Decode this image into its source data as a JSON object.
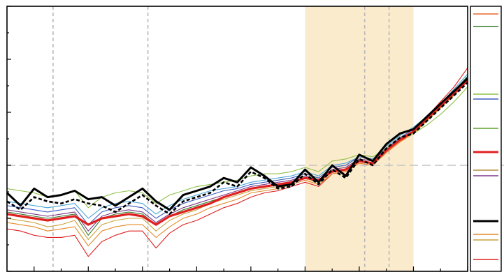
{
  "chart_data": {
    "type": "line",
    "title": "",
    "xlabel": "",
    "ylabel": "",
    "xlim": [
      1850,
      2020
    ],
    "ylim": [
      -1.0,
      1.5
    ],
    "grid": false,
    "reference_line_y": 0,
    "volcanic_event_x": [
      1867,
      1902,
      1982,
      1991
    ],
    "shaded_region": {
      "start": 1960,
      "end": 2000,
      "color": "#fbebcd"
    },
    "legend": {
      "placement": "right",
      "swatch_colors": [
        "#e96a2a",
        "#3a7d2e",
        "#8fbf4a",
        "#3f5cc0",
        "#5ea02f",
        "#e02020",
        "#b48a3c",
        "#7b3a8a",
        "#000000",
        "#e38a2a",
        "#c8a23c",
        "#e02020"
      ]
    },
    "x": [
      1850,
      1855,
      1860,
      1865,
      1870,
      1875,
      1880,
      1885,
      1890,
      1895,
      1900,
      1905,
      1910,
      1915,
      1920,
      1925,
      1930,
      1935,
      1940,
      1945,
      1950,
      1955,
      1960,
      1965,
      1970,
      1975,
      1980,
      1985,
      1990,
      1995,
      2000,
      2005,
      2010,
      2015,
      2020
    ],
    "series": [
      {
        "color": "#000000",
        "style": "thick",
        "values": [
          -0.26,
          -0.38,
          -0.22,
          -0.3,
          -0.28,
          -0.24,
          -0.32,
          -0.3,
          -0.38,
          -0.3,
          -0.22,
          -0.34,
          -0.42,
          -0.28,
          -0.24,
          -0.2,
          -0.12,
          -0.16,
          -0.02,
          -0.1,
          -0.2,
          -0.18,
          -0.04,
          -0.16,
          0.0,
          -0.1,
          0.1,
          0.04,
          0.2,
          0.3,
          0.34,
          0.46,
          0.58,
          0.7,
          0.82
        ]
      },
      {
        "color": "#000000",
        "style": "dashed",
        "values": [
          -0.34,
          -0.42,
          -0.3,
          -0.34,
          -0.36,
          -0.32,
          -0.36,
          -0.38,
          -0.44,
          -0.36,
          -0.28,
          -0.38,
          -0.46,
          -0.34,
          -0.3,
          -0.26,
          -0.16,
          -0.2,
          -0.06,
          -0.12,
          -0.22,
          -0.2,
          -0.08,
          -0.18,
          -0.04,
          -0.12,
          0.06,
          0.0,
          0.16,
          0.26,
          0.3,
          0.42,
          0.54,
          0.66,
          0.78
        ]
      },
      {
        "color": "#e02020",
        "style": "mean",
        "values": [
          -0.46,
          -0.48,
          -0.5,
          -0.52,
          -0.5,
          -0.48,
          -0.56,
          -0.5,
          -0.48,
          -0.46,
          -0.48,
          -0.56,
          -0.48,
          -0.44,
          -0.4,
          -0.36,
          -0.3,
          -0.26,
          -0.22,
          -0.2,
          -0.18,
          -0.16,
          -0.12,
          -0.14,
          -0.06,
          -0.04,
          0.04,
          0.02,
          0.14,
          0.24,
          0.32,
          0.44,
          0.56,
          0.68,
          0.8
        ]
      },
      {
        "color": "#e02020",
        "style": "thin",
        "values": [
          -0.6,
          -0.62,
          -0.66,
          -0.68,
          -0.68,
          -0.66,
          -0.86,
          -0.72,
          -0.66,
          -0.62,
          -0.62,
          -0.78,
          -0.64,
          -0.56,
          -0.52,
          -0.46,
          -0.4,
          -0.36,
          -0.3,
          -0.26,
          -0.24,
          -0.2,
          -0.16,
          -0.2,
          -0.08,
          -0.06,
          0.02,
          0.0,
          0.12,
          0.22,
          0.32,
          0.46,
          0.6,
          0.74,
          0.92
        ]
      },
      {
        "color": "#e38a2a",
        "style": "thin",
        "values": [
          -0.54,
          -0.56,
          -0.58,
          -0.62,
          -0.6,
          -0.58,
          -0.76,
          -0.62,
          -0.58,
          -0.56,
          -0.56,
          -0.68,
          -0.58,
          -0.5,
          -0.46,
          -0.4,
          -0.36,
          -0.32,
          -0.26,
          -0.24,
          -0.22,
          -0.18,
          -0.14,
          -0.18,
          -0.08,
          -0.06,
          0.02,
          0.0,
          0.12,
          0.22,
          0.3,
          0.42,
          0.54,
          0.66,
          0.8
        ]
      },
      {
        "color": "#c8a23c",
        "style": "thin",
        "values": [
          -0.5,
          -0.52,
          -0.54,
          -0.58,
          -0.56,
          -0.52,
          -0.7,
          -0.56,
          -0.52,
          -0.5,
          -0.5,
          -0.62,
          -0.52,
          -0.46,
          -0.42,
          -0.36,
          -0.32,
          -0.28,
          -0.24,
          -0.22,
          -0.2,
          -0.16,
          -0.12,
          -0.16,
          -0.06,
          -0.04,
          0.04,
          0.02,
          0.14,
          0.24,
          0.32,
          0.42,
          0.54,
          0.66,
          0.8
        ]
      },
      {
        "color": "#7b3a8a",
        "style": "thin",
        "values": [
          -0.42,
          -0.44,
          -0.46,
          -0.48,
          -0.46,
          -0.44,
          -0.62,
          -0.48,
          -0.44,
          -0.42,
          -0.44,
          -0.54,
          -0.46,
          -0.4,
          -0.36,
          -0.32,
          -0.28,
          -0.24,
          -0.2,
          -0.18,
          -0.16,
          -0.14,
          -0.1,
          -0.14,
          -0.04,
          -0.02,
          0.06,
          0.04,
          0.16,
          0.26,
          0.34,
          0.46,
          0.58,
          0.7,
          0.82
        ]
      },
      {
        "color": "#3f5cc0",
        "style": "thin",
        "values": [
          -0.38,
          -0.4,
          -0.42,
          -0.44,
          -0.42,
          -0.4,
          -0.56,
          -0.44,
          -0.4,
          -0.38,
          -0.4,
          -0.5,
          -0.42,
          -0.36,
          -0.32,
          -0.28,
          -0.24,
          -0.22,
          -0.18,
          -0.16,
          -0.14,
          -0.12,
          -0.08,
          -0.12,
          -0.02,
          0.0,
          0.08,
          0.06,
          0.16,
          0.26,
          0.34,
          0.46,
          0.58,
          0.7,
          0.84
        ]
      },
      {
        "color": "#4aa6d8",
        "style": "thin",
        "values": [
          -0.34,
          -0.36,
          -0.38,
          -0.4,
          -0.38,
          -0.36,
          -0.5,
          -0.4,
          -0.36,
          -0.34,
          -0.36,
          -0.46,
          -0.38,
          -0.32,
          -0.28,
          -0.24,
          -0.22,
          -0.2,
          -0.16,
          -0.14,
          -0.12,
          -0.1,
          -0.06,
          -0.1,
          0.0,
          0.02,
          0.08,
          0.06,
          0.18,
          0.28,
          0.36,
          0.46,
          0.58,
          0.72,
          0.86
        ]
      },
      {
        "color": "#8fbf4a",
        "style": "thin",
        "values": [
          -0.22,
          -0.24,
          -0.26,
          -0.3,
          -0.28,
          -0.24,
          -0.4,
          -0.3,
          -0.26,
          -0.24,
          -0.26,
          -0.36,
          -0.28,
          -0.24,
          -0.2,
          -0.18,
          -0.16,
          -0.14,
          -0.1,
          -0.08,
          -0.08,
          -0.06,
          -0.02,
          -0.06,
          0.04,
          0.06,
          0.1,
          0.08,
          0.16,
          0.24,
          0.3,
          0.38,
          0.48,
          0.6,
          0.74
        ]
      },
      {
        "color": "#3a7d2e",
        "style": "thin",
        "values": [
          -0.44,
          -0.46,
          -0.48,
          -0.5,
          -0.48,
          -0.46,
          -0.66,
          -0.5,
          -0.46,
          -0.44,
          -0.46,
          -0.56,
          -0.48,
          -0.42,
          -0.38,
          -0.34,
          -0.3,
          -0.26,
          -0.22,
          -0.2,
          -0.18,
          -0.16,
          -0.12,
          -0.16,
          -0.06,
          -0.04,
          0.04,
          0.02,
          0.14,
          0.24,
          0.32,
          0.44,
          0.56,
          0.7,
          0.84
        ]
      }
    ]
  }
}
